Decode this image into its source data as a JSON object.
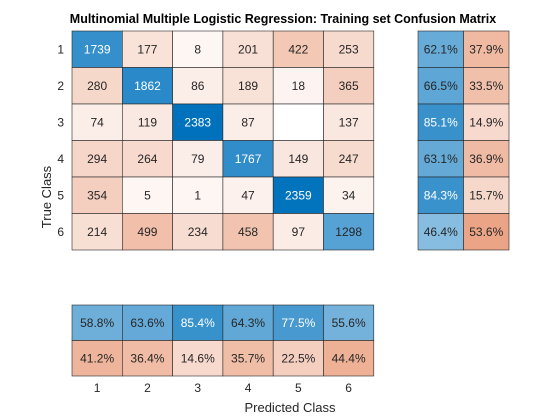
{
  "chart_data": {
    "type": "heatmap",
    "title": "Multinomial Multiple Logistic Regression: Training set Confusion Matrix",
    "xlabel": "Predicted Class",
    "ylabel": "True Class",
    "classes": [
      "1",
      "2",
      "3",
      "4",
      "5",
      "6"
    ],
    "matrix": [
      [
        1739,
        177,
        8,
        201,
        422,
        253
      ],
      [
        280,
        1862,
        86,
        189,
        18,
        365
      ],
      [
        74,
        119,
        2383,
        87,
        0,
        137
      ],
      [
        294,
        264,
        79,
        1767,
        149,
        247
      ],
      [
        354,
        5,
        1,
        47,
        2359,
        34
      ],
      [
        214,
        499,
        234,
        458,
        97,
        1298
      ]
    ],
    "row_summary": [
      [
        "62.1%",
        "37.9%"
      ],
      [
        "66.5%",
        "33.5%"
      ],
      [
        "85.1%",
        "14.9%"
      ],
      [
        "63.1%",
        "36.9%"
      ],
      [
        "84.3%",
        "15.7%"
      ],
      [
        "46.4%",
        "53.6%"
      ]
    ],
    "column_summary": [
      [
        "58.8%",
        "63.6%",
        "85.4%",
        "64.3%",
        "77.5%",
        "55.6%"
      ],
      [
        "41.2%",
        "36.4%",
        "14.6%",
        "35.7%",
        "22.5%",
        "44.4%"
      ]
    ]
  }
}
